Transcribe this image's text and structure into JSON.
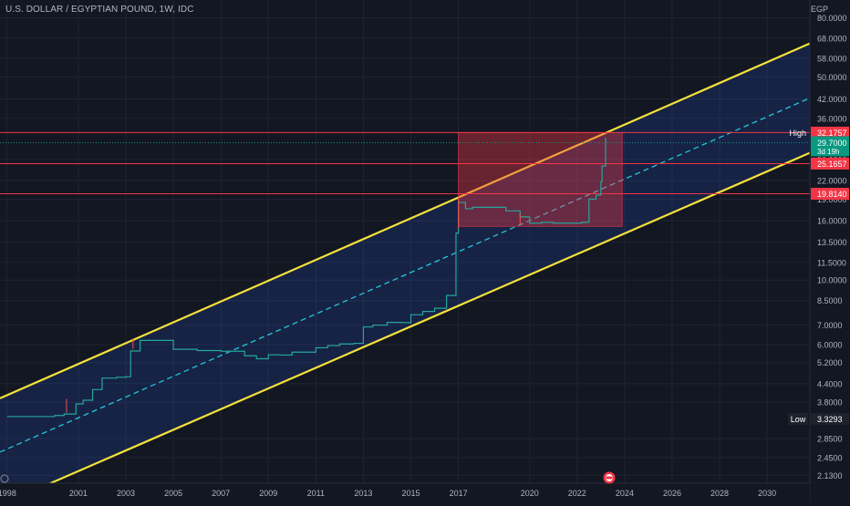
{
  "header": {
    "symbol": "U.S. DOLLAR / EGYPTIAN POUND, 1W, IDC"
  },
  "theme": {
    "background": "#131722",
    "grid": "#1f2430",
    "axis_text": "#b2b5be",
    "channel_line": "#f5e13b",
    "channel_fill": "#2962ff",
    "midline": "#26c6da",
    "price_line": "#26a69a",
    "level_line": "#f23645",
    "zone_fill": "#f23645",
    "current_badge": "#089981"
  },
  "chart_data": {
    "type": "line",
    "title": "U.S. DOLLAR / EGYPTIAN POUND, 1W, IDC",
    "xlabel": "",
    "ylabel": "EGP",
    "scale": "log",
    "ylim": [
      2.0,
      92.0
    ],
    "xlim": [
      1997.7,
      2031.8
    ],
    "grid": true,
    "x_ticks": [
      "1998",
      "2001",
      "2003",
      "2005",
      "2007",
      "2009",
      "2011",
      "2013",
      "2015",
      "2017",
      "2020",
      "2022",
      "2024",
      "2026",
      "2028",
      "2030"
    ],
    "x_tick_values": [
      1998,
      2001,
      2003,
      2005,
      2007,
      2009,
      2011,
      2013,
      2015,
      2017,
      2020,
      2022,
      2024,
      2026,
      2028,
      2030
    ],
    "y_ticks": [
      "80.0000",
      "68.0000",
      "58.0000",
      "50.0000",
      "42.0000",
      "36.0000",
      "26.0000",
      "22.0000",
      "19.0000",
      "16.0000",
      "13.5000",
      "11.5000",
      "10.0000",
      "8.5000",
      "7.0000",
      "6.0000",
      "5.2000",
      "4.4000",
      "3.8000",
      "2.8500",
      "2.4500",
      "2.1300"
    ],
    "y_tick_values": [
      80,
      68,
      58,
      50,
      42,
      36,
      26,
      22,
      19,
      16,
      13.5,
      11.5,
      10,
      8.5,
      7,
      6,
      5.2,
      4.4,
      3.8,
      2.85,
      2.45,
      2.13
    ],
    "price_series": {
      "name": "USDEGP",
      "x": [
        1998.0,
        2000.0,
        2000.4,
        2000.9,
        2001.2,
        2001.6,
        2002.0,
        2002.6,
        2003.0,
        2003.2,
        2003.6,
        2004.2,
        2005.0,
        2006.0,
        2007.0,
        2008.0,
        2008.5,
        2009.0,
        2009.5,
        2010.0,
        2011.0,
        2011.5,
        2012.0,
        2012.6,
        2013.0,
        2013.4,
        2014.0,
        2014.6,
        2015.0,
        2015.5,
        2016.0,
        2016.5,
        2016.85,
        2016.9,
        2017.0,
        2017.3,
        2017.6,
        2018.0,
        2018.5,
        2019.0,
        2019.6,
        2020.0,
        2020.5,
        2021.0,
        2021.5,
        2022.0,
        2022.2,
        2022.5,
        2022.8,
        2023.0,
        2023.05,
        2023.2
      ],
      "y": [
        3.39,
        3.42,
        3.46,
        3.75,
        3.86,
        4.2,
        4.6,
        4.63,
        4.65,
        5.7,
        6.2,
        6.2,
        5.78,
        5.72,
        5.69,
        5.49,
        5.36,
        5.53,
        5.52,
        5.65,
        5.85,
        5.95,
        6.03,
        6.06,
        6.9,
        7.0,
        7.15,
        7.14,
        7.6,
        7.8,
        8.0,
        8.85,
        8.85,
        14.5,
        18.5,
        17.6,
        17.8,
        17.8,
        17.8,
        17.3,
        16.5,
        15.7,
        15.8,
        15.7,
        15.7,
        15.7,
        15.8,
        19.0,
        19.6,
        21.8,
        24.7,
        30.9
      ]
    },
    "channel": {
      "upper": {
        "x": [
          1997.7,
          2031.8
        ],
        "y": [
          3.92,
          65.2
        ]
      },
      "lower": {
        "x": [
          1997.7,
          2031.8
        ],
        "y": [
          1.68,
          27.4
        ]
      },
      "mid": {
        "x": [
          1997.7,
          2031.8
        ],
        "y": [
          2.56,
          42.3
        ]
      }
    },
    "zone": {
      "x": [
        2017.0,
        2023.9
      ],
      "y": [
        15.3,
        32.1757
      ]
    },
    "levels": [
      32.1757,
      25.1657,
      19.814
    ],
    "level_labels": [
      "32.1757",
      "25.1657",
      "19.8140"
    ],
    "high": {
      "label": "High",
      "value_label": "32.1900",
      "value": 32.19
    },
    "current": {
      "value_label": "29.7000",
      "value": 29.7,
      "sub_label": "3d 19h"
    },
    "low": {
      "label": "Low",
      "value_label": "3.3293",
      "value": 3.3293
    }
  }
}
